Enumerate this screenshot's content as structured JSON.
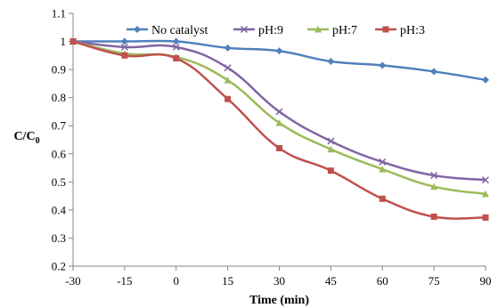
{
  "chart_data": {
    "type": "line",
    "title": "",
    "xlabel": "Time (min)",
    "ylabel_main": "C/C",
    "ylabel_sub": "0",
    "xlim": [
      -30,
      90
    ],
    "ylim": [
      0.2,
      1.1
    ],
    "x_ticks": [
      -30,
      -15,
      0,
      15,
      30,
      45,
      60,
      75,
      90
    ],
    "y_ticks": [
      "0.2",
      "0.3",
      "0.4",
      "0.5",
      "0.6",
      "0.7",
      "0.8",
      "0.9",
      "1",
      "1.1"
    ],
    "grid": false,
    "legend_position": "top",
    "x": [
      -30,
      -15,
      0,
      15,
      30,
      45,
      60,
      75,
      90
    ],
    "series": [
      {
        "name": "No catalyst",
        "color": "#4F81BD",
        "marker": "diamond",
        "values": [
          1.0,
          1.0,
          1.0,
          0.977,
          0.966,
          0.929,
          0.915,
          0.893,
          0.863
        ]
      },
      {
        "name": "pH:9",
        "color": "#8064A2",
        "marker": "x",
        "values": [
          1.0,
          0.98,
          0.98,
          0.906,
          0.75,
          0.645,
          0.571,
          0.523,
          0.507
        ]
      },
      {
        "name": "pH:7",
        "color": "#9BBB59",
        "marker": "triangle",
        "values": [
          1.0,
          0.957,
          0.945,
          0.862,
          0.71,
          0.616,
          0.545,
          0.483,
          0.457
        ]
      },
      {
        "name": "pH:3",
        "color": "#C0504D",
        "marker": "square",
        "values": [
          1.0,
          0.95,
          0.94,
          0.795,
          0.62,
          0.54,
          0.44,
          0.376,
          0.373
        ]
      }
    ]
  }
}
